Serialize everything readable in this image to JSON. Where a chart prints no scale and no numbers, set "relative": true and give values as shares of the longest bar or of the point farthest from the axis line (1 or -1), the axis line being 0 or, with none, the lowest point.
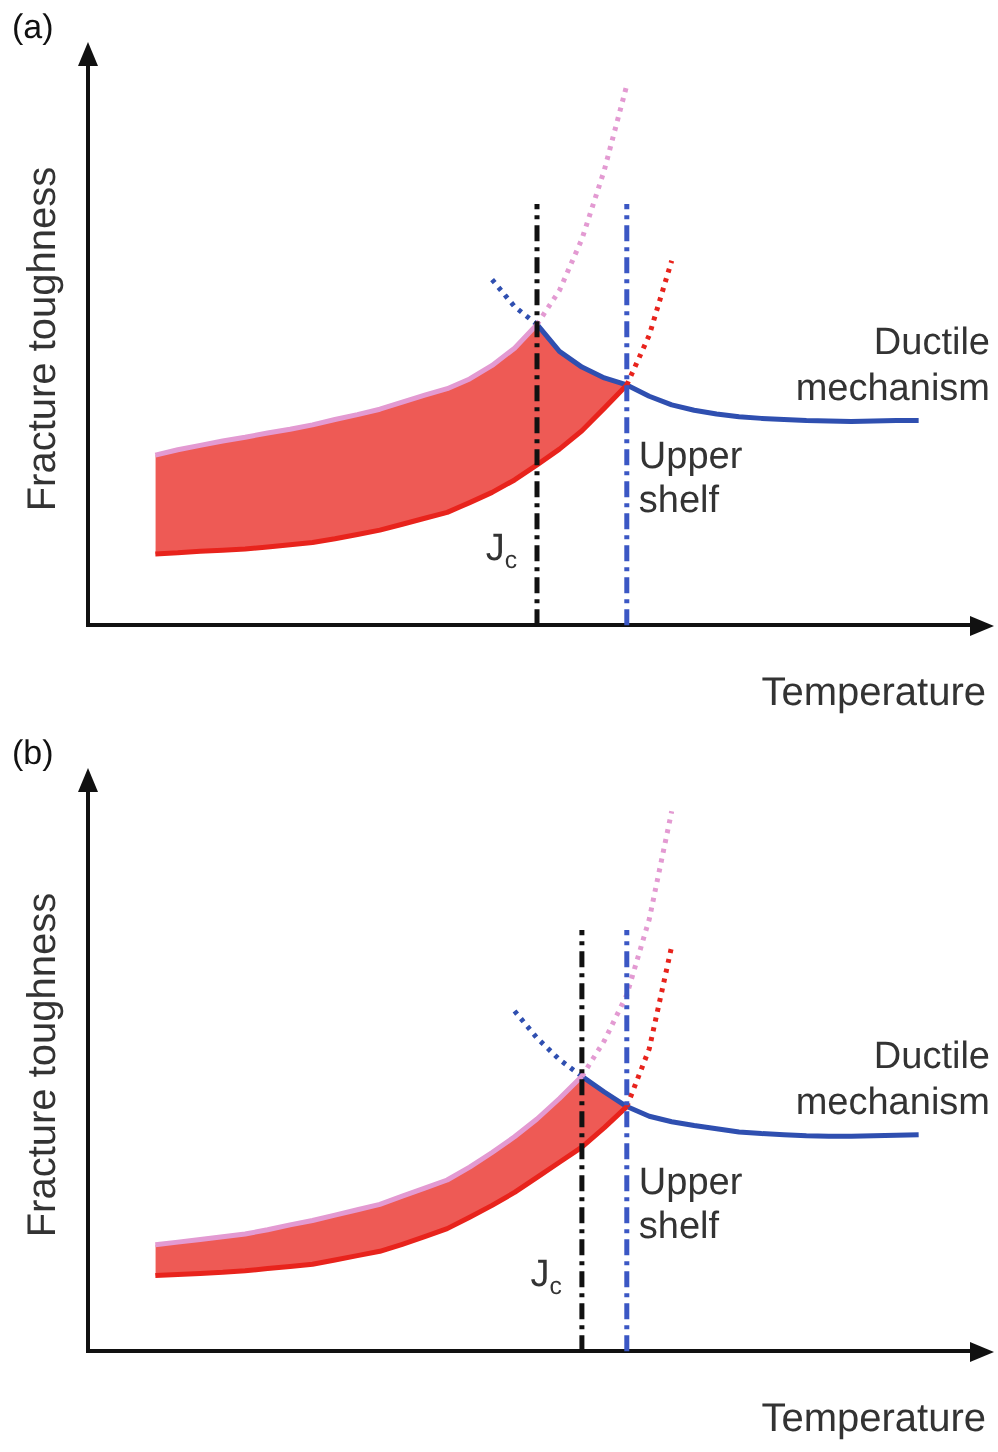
{
  "chart_data": [
    {
      "type": "line",
      "title": "(a)",
      "xlabel": "Temperature",
      "ylabel": "Fracture toughness",
      "relative": true,
      "categories": [
        null,
        null,
        null,
        null,
        null,
        null,
        null,
        null,
        null,
        null,
        null,
        null,
        null,
        null,
        null,
        null,
        null,
        null,
        null,
        null,
        null,
        null,
        null,
        null,
        null,
        null,
        null,
        null,
        null,
        null,
        null,
        null,
        null,
        null,
        null,
        null,
        null,
        null,
        null,
        null,
        null
      ],
      "series": [
        {
          "color": "#e8231c",
          "values": [
            null,
            null,
            null,
            0.132,
            0.134,
            0.137,
            0.139,
            0.141,
            0.145,
            0.149,
            0.153,
            0.16,
            0.168,
            0.176,
            0.187,
            0.198,
            0.209,
            0.227,
            0.246,
            0.269,
            0.297,
            0.326,
            0.36,
            0.402,
            0.445,
            null,
            null,
            null,
            null,
            null,
            null,
            null,
            null,
            null,
            null,
            null,
            null,
            null,
            null,
            null,
            null
          ],
          "lower": [
            null,
            null,
            null,
            0.132,
            0.134,
            0.137,
            0.139,
            0.141,
            0.145,
            0.149,
            0.153,
            0.16,
            0.168,
            0.176,
            0.187,
            0.198,
            0.209,
            0.227,
            0.246,
            0.269,
            0.297,
            0.326,
            0.36,
            0.402,
            0.445,
            null,
            null,
            null,
            null,
            null,
            null,
            null,
            null,
            null,
            null,
            null,
            null,
            null,
            null,
            null,
            null
          ],
          "upper": [
            null,
            null,
            null,
            0.315,
            0.325,
            0.333,
            0.341,
            0.348,
            0.356,
            0.363,
            0.371,
            0.381,
            0.39,
            0.4,
            0.413,
            0.426,
            0.438,
            0.456,
            0.481,
            0.513,
            0.557,
            0.507,
            0.478,
            0.458,
            0.445,
            null,
            null,
            null,
            null,
            null,
            null,
            null,
            null,
            null,
            null,
            null,
            null,
            null,
            null,
            null,
            null
          ]
        },
        {
          "color": "#e8231c",
          "line_style": "dotted",
          "values": [
            null,
            null,
            null,
            null,
            null,
            null,
            null,
            null,
            null,
            null,
            null,
            null,
            null,
            null,
            null,
            null,
            null,
            null,
            null,
            null,
            null,
            null,
            null,
            null,
            0.445,
            0.537,
            0.675,
            null,
            null,
            null,
            null,
            null,
            null,
            null,
            null,
            null,
            null,
            null,
            null,
            null,
            null
          ]
        },
        {
          "color": "#e39ad2",
          "values": [
            null,
            null,
            null,
            0.315,
            0.325,
            0.333,
            0.341,
            0.348,
            0.356,
            0.363,
            0.371,
            0.381,
            0.39,
            0.4,
            0.413,
            0.426,
            0.438,
            0.456,
            0.481,
            0.513,
            0.557,
            null,
            null,
            null,
            null,
            null,
            null,
            null,
            null,
            null,
            null,
            null,
            null,
            null,
            null,
            null,
            null,
            null,
            null,
            null,
            null
          ]
        },
        {
          "color": "#e39ad2",
          "line_style": "dotted",
          "values": [
            null,
            null,
            null,
            null,
            null,
            null,
            null,
            null,
            null,
            null,
            null,
            null,
            null,
            null,
            null,
            null,
            null,
            null,
            null,
            null,
            0.557,
            0.62,
            0.715,
            0.843,
            1,
            null,
            null,
            null,
            null,
            null,
            null,
            null,
            null,
            null,
            null,
            null,
            null,
            null,
            null,
            null,
            null
          ]
        },
        {
          "color": "#2f4fb0",
          "line_style": "dotted",
          "values": [
            null,
            null,
            null,
            null,
            null,
            null,
            null,
            null,
            null,
            null,
            null,
            null,
            null,
            null,
            null,
            null,
            null,
            null,
            0.64,
            0.59,
            0.557,
            null,
            null,
            null,
            null,
            null,
            null,
            null,
            null,
            null,
            null,
            null,
            null,
            null,
            null,
            null,
            null,
            null,
            null,
            null,
            null
          ]
        },
        {
          "name": "Ductile mechanism",
          "color": "#2f4fb0",
          "values": [
            null,
            null,
            null,
            null,
            null,
            null,
            null,
            null,
            null,
            null,
            null,
            null,
            null,
            null,
            null,
            null,
            null,
            null,
            null,
            null,
            0.557,
            0.507,
            0.478,
            0.458,
            0.445,
            0.424,
            0.408,
            0.398,
            0.391,
            0.386,
            0.383,
            0.381,
            0.379,
            0.378,
            0.377,
            0.378,
            0.379,
            0.379,
            null,
            null,
            null
          ]
        }
      ],
      "annotations": [
        "J$_{c}$",
        "Upper shelf"
      ]
    },
    {
      "type": "line",
      "title": "(b)",
      "xlabel": "Temperature",
      "ylabel": "Fracture toughness",
      "relative": true,
      "categories": [
        null,
        null,
        null,
        null,
        null,
        null,
        null,
        null,
        null,
        null,
        null,
        null,
        null,
        null,
        null,
        null,
        null,
        null,
        null,
        null,
        null,
        null,
        null,
        null,
        null,
        null,
        null,
        null,
        null,
        null,
        null,
        null,
        null,
        null,
        null,
        null,
        null,
        null,
        null,
        null,
        null
      ],
      "series": [
        {
          "color": "#e8231c",
          "values": [
            null,
            null,
            null,
            0.14,
            0.142,
            0.144,
            0.146,
            0.149,
            0.153,
            0.157,
            0.161,
            0.169,
            0.177,
            0.185,
            0.198,
            0.212,
            0.227,
            0.248,
            0.27,
            0.294,
            0.322,
            0.35,
            0.378,
            0.414,
            0.453,
            null,
            null,
            null,
            null,
            null,
            null,
            null,
            null,
            null,
            null,
            null,
            null,
            null,
            null,
            null,
            null
          ],
          "lower": [
            null,
            null,
            null,
            0.14,
            0.142,
            0.144,
            0.146,
            0.149,
            0.153,
            0.157,
            0.161,
            0.169,
            0.177,
            0.185,
            0.198,
            0.212,
            0.227,
            0.248,
            0.27,
            0.294,
            0.322,
            0.35,
            0.378,
            0.414,
            0.453,
            null,
            null,
            null,
            null,
            null,
            null,
            null,
            null,
            null,
            null,
            null,
            null,
            null,
            null,
            null,
            null
          ],
          "upper": [
            null,
            null,
            null,
            0.197,
            0.202,
            0.207,
            0.212,
            0.217,
            0.225,
            0.234,
            0.242,
            0.252,
            0.262,
            0.272,
            0.287,
            0.302,
            0.317,
            0.341,
            0.368,
            0.397,
            0.43,
            0.468,
            0.509,
            0.48,
            0.453,
            null,
            null,
            null,
            null,
            null,
            null,
            null,
            null,
            null,
            null,
            null,
            null,
            null,
            null,
            null,
            null
          ]
        },
        {
          "color": "#e8231c",
          "line_style": "dotted",
          "values": [
            null,
            null,
            null,
            null,
            null,
            null,
            null,
            null,
            null,
            null,
            null,
            null,
            null,
            null,
            null,
            null,
            null,
            null,
            null,
            null,
            null,
            null,
            null,
            null,
            0.453,
            0.56,
            0.75,
            null,
            null,
            null,
            null,
            null,
            null,
            null,
            null,
            null,
            null,
            null,
            null,
            null,
            null
          ]
        },
        {
          "color": "#e39ad2",
          "values": [
            null,
            null,
            null,
            0.197,
            0.202,
            0.207,
            0.212,
            0.217,
            0.225,
            0.234,
            0.242,
            0.252,
            0.262,
            0.272,
            0.287,
            0.302,
            0.317,
            0.341,
            0.368,
            0.397,
            0.43,
            0.468,
            0.509,
            null,
            null,
            null,
            null,
            null,
            null,
            null,
            null,
            null,
            null,
            null,
            null,
            null,
            null,
            null,
            null,
            null,
            null
          ]
        },
        {
          "color": "#e39ad2",
          "line_style": "dotted",
          "values": [
            null,
            null,
            null,
            null,
            null,
            null,
            null,
            null,
            null,
            null,
            null,
            null,
            null,
            null,
            null,
            null,
            null,
            null,
            null,
            null,
            null,
            null,
            0.509,
            0.575,
            0.66,
            0.8,
            1,
            null,
            null,
            null,
            null,
            null,
            null,
            null,
            null,
            null,
            null,
            null,
            null,
            null,
            null
          ]
        },
        {
          "color": "#2f4fb0",
          "line_style": "dotted",
          "values": [
            null,
            null,
            null,
            null,
            null,
            null,
            null,
            null,
            null,
            null,
            null,
            null,
            null,
            null,
            null,
            null,
            null,
            null,
            null,
            0.63,
            0.58,
            0.54,
            0.509,
            null,
            null,
            null,
            null,
            null,
            null,
            null,
            null,
            null,
            null,
            null,
            null,
            null,
            null,
            null,
            null,
            null,
            null
          ]
        },
        {
          "name": "Ductile mechanism",
          "color": "#2f4fb0",
          "values": [
            null,
            null,
            null,
            null,
            null,
            null,
            null,
            null,
            null,
            null,
            null,
            null,
            null,
            null,
            null,
            null,
            null,
            null,
            null,
            null,
            null,
            null,
            0.509,
            0.48,
            0.453,
            0.435,
            0.425,
            0.418,
            0.412,
            0.406,
            0.403,
            0.401,
            0.399,
            0.398,
            0.398,
            0.399,
            0.4,
            0.401,
            null,
            null,
            null
          ]
        }
      ],
      "annotations": [
        "J$_{c}$",
        "Upper shelf"
      ]
    }
  ]
}
